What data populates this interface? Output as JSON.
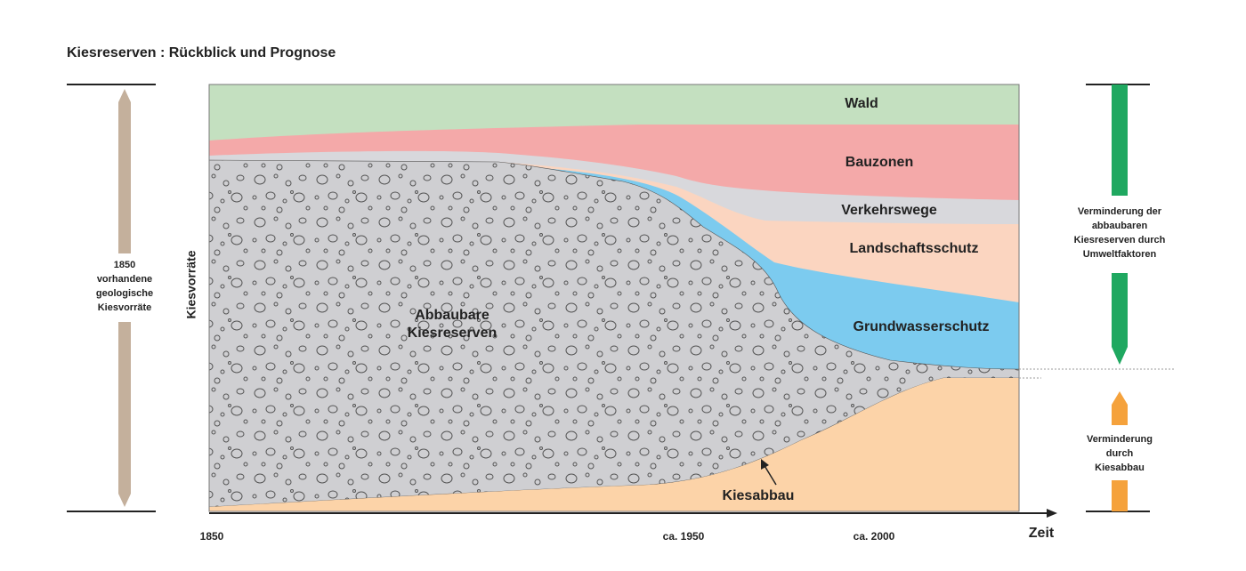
{
  "title": "Kiesreserven : Rückblick und Prognose",
  "y_axis_label": "Kiesvorräte",
  "x_axis": {
    "label": "Zeit",
    "ticks": [
      "1850",
      "ca. 1950",
      "ca. 2000"
    ]
  },
  "left_label": [
    "1850",
    "vorhandene",
    "geologische",
    "Kiesvorräte"
  ],
  "areas": {
    "wald": "Wald",
    "bauzonen": "Bauzonen",
    "verkehrswege": "Verkehrswege",
    "landschaftsschutz": "Landschaftsschutz",
    "grundwasserschutz": "Grundwasserschutz",
    "kiesreserven": [
      "Abbaubare",
      "Kiesreserven"
    ],
    "kiesabbau": "Kiesabbau"
  },
  "right_labels": {
    "umwelt": [
      "Verminderung der",
      "abbaubaren",
      "Kiesreserven durch",
      "Umweltfaktoren"
    ],
    "abbau": [
      "Verminderung",
      "durch",
      "Kiesabbau"
    ]
  }
}
